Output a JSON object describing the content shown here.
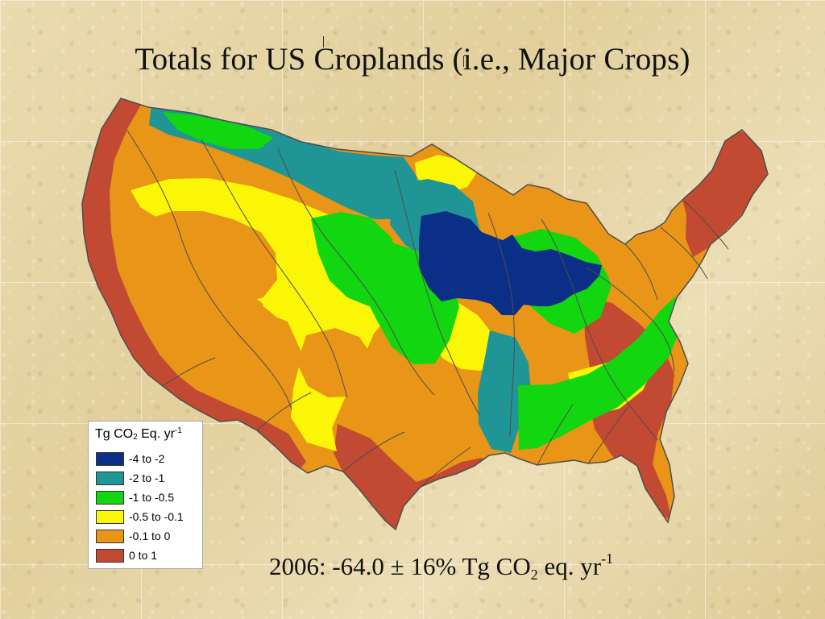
{
  "title": "Totals for US Croplands (i.e., Major Crops)",
  "colors": {
    "class_1": "#0b2f86",
    "class_2": "#1f9595",
    "class_3": "#12d60f",
    "class_4": "#fbf508",
    "class_5": "#e99517",
    "class_6": "#c24a32",
    "boundary": "#4d4d4d",
    "background": "#e8d7a8"
  },
  "legend": {
    "title_prefix": "Tg CO",
    "title_sub": "2",
    "title_mid": " Eq. yr",
    "title_sup": "-1",
    "items": [
      {
        "label": "-4 to -2",
        "color": "#0b2f86"
      },
      {
        "label": "-2 to -1",
        "color": "#1f9595"
      },
      {
        "label": "-1 to -0.5",
        "color": "#12d60f"
      },
      {
        "label": "-0.5 to -0.1",
        "color": "#fbf508"
      },
      {
        "label": "-0.1 to 0",
        "color": "#e99517"
      },
      {
        "label": "0 to 1",
        "color": "#c24a32"
      }
    ]
  },
  "summary": {
    "prefix": "2006: -64.0 ± 16% Tg CO",
    "sub": "2",
    "middle": " eq. yr",
    "sup": "-1"
  }
}
